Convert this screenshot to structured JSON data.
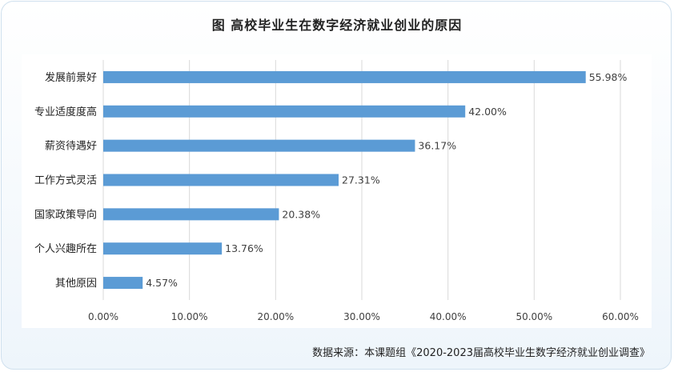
{
  "title": "图  高校毕业生在数字经济就业创业的原因",
  "source": "数据来源：本课题组《2020-2023届高校毕业生数字经济就业创业调查》",
  "colors": {
    "bar": "#5b9bd5",
    "grid": "#d9d9d9",
    "text": "#404040"
  },
  "chart_data": {
    "type": "bar",
    "orientation": "horizontal",
    "title": "图  高校毕业生在数字经济就业创业的原因",
    "categories": [
      "发展前景好",
      "专业适度度高",
      "薪资待遇好",
      "工作方式灵活",
      "国家政策导向",
      "个人兴趣所在",
      "其他原因"
    ],
    "values": [
      55.98,
      42.0,
      36.17,
      27.31,
      20.38,
      13.76,
      4.57
    ],
    "value_labels": [
      "55.98%",
      "42.00%",
      "36.17%",
      "27.31%",
      "20.38%",
      "13.76%",
      "4.57%"
    ],
    "xlim": [
      0,
      60
    ],
    "xticks": [
      0,
      10,
      20,
      30,
      40,
      50,
      60
    ],
    "xtick_labels": [
      "0.00%",
      "10.00%",
      "20.00%",
      "30.00%",
      "40.00%",
      "50.00%",
      "60.00%"
    ],
    "grid": true
  }
}
